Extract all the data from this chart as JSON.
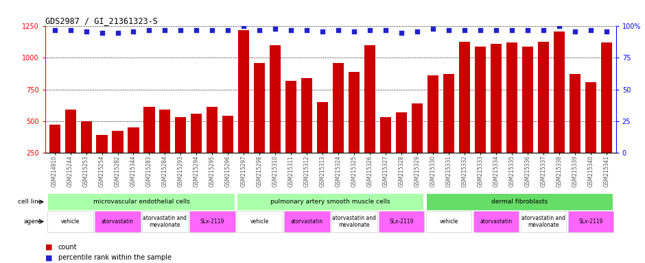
{
  "title": "GDS2987 / GI_21361323-S",
  "samples": [
    "GSM214810",
    "GSM215244",
    "GSM215253",
    "GSM215254",
    "GSM215282",
    "GSM215344",
    "GSM215283",
    "GSM215284",
    "GSM215293",
    "GSM215294",
    "GSM215295",
    "GSM215296",
    "GSM215297",
    "GSM215298",
    "GSM215310",
    "GSM215311",
    "GSM215312",
    "GSM215313",
    "GSM215324",
    "GSM215325",
    "GSM215326",
    "GSM215327",
    "GSM215328",
    "GSM215329",
    "GSM215330",
    "GSM215331",
    "GSM215332",
    "GSM215333",
    "GSM215334",
    "GSM215335",
    "GSM215336",
    "GSM215337",
    "GSM215338",
    "GSM215339",
    "GSM215340",
    "GSM215341"
  ],
  "counts": [
    470,
    590,
    500,
    390,
    420,
    450,
    610,
    590,
    530,
    560,
    610,
    540,
    1220,
    960,
    1100,
    820,
    840,
    650,
    960,
    890,
    1100,
    530,
    570,
    640,
    860,
    870,
    1130,
    1090,
    1110,
    1120,
    1090,
    1130,
    1210,
    870,
    810,
    1120
  ],
  "percentile_ranks": [
    97,
    97,
    96,
    95,
    95,
    96,
    97,
    97,
    97,
    97,
    97,
    97,
    100,
    97,
    98,
    97,
    97,
    96,
    97,
    96,
    97,
    97,
    95,
    96,
    98,
    97,
    97,
    97,
    97,
    97,
    97,
    97,
    100,
    96,
    97,
    96
  ],
  "bar_color": "#cc0000",
  "dot_color": "#2222cc",
  "ylim_left": [
    250,
    1250
  ],
  "ylim_right": [
    0,
    100
  ],
  "yticks_left": [
    250,
    500,
    750,
    1000,
    1250
  ],
  "yticks_right": [
    0,
    25,
    50,
    75,
    100
  ],
  "cell_lines": [
    {
      "label": "microvascular endothelial cells",
      "start": 0,
      "end": 12,
      "color": "#aaffaa"
    },
    {
      "label": "pulmonary artery smooth muscle cells",
      "start": 12,
      "end": 24,
      "color": "#aaffaa"
    },
    {
      "label": "dermal fibroblasts",
      "start": 24,
      "end": 36,
      "color": "#66dd66"
    }
  ],
  "agents": [
    {
      "label": "vehicle",
      "start": 0,
      "end": 3,
      "color": "#ffffff"
    },
    {
      "label": "atorvastatin",
      "start": 3,
      "end": 6,
      "color": "#ff66ff"
    },
    {
      "label": "atorvastatin and\nmevalonate",
      "start": 6,
      "end": 9,
      "color": "#ffffff"
    },
    {
      "label": "SLx-2119",
      "start": 9,
      "end": 12,
      "color": "#ff66ff"
    },
    {
      "label": "vehicle",
      "start": 12,
      "end": 15,
      "color": "#ffffff"
    },
    {
      "label": "atorvastatin",
      "start": 15,
      "end": 18,
      "color": "#ff66ff"
    },
    {
      "label": "atorvastatin and\nmevalonate",
      "start": 18,
      "end": 21,
      "color": "#ffffff"
    },
    {
      "label": "SLx-2119",
      "start": 21,
      "end": 24,
      "color": "#ff66ff"
    },
    {
      "label": "vehicle",
      "start": 24,
      "end": 27,
      "color": "#ffffff"
    },
    {
      "label": "atorvastatin",
      "start": 27,
      "end": 30,
      "color": "#ff66ff"
    },
    {
      "label": "atorvastatin and\nmevalonate",
      "start": 30,
      "end": 33,
      "color": "#ffffff"
    },
    {
      "label": "SLx-2119",
      "start": 33,
      "end": 36,
      "color": "#ff66ff"
    }
  ],
  "bg_color": "#ffffff"
}
